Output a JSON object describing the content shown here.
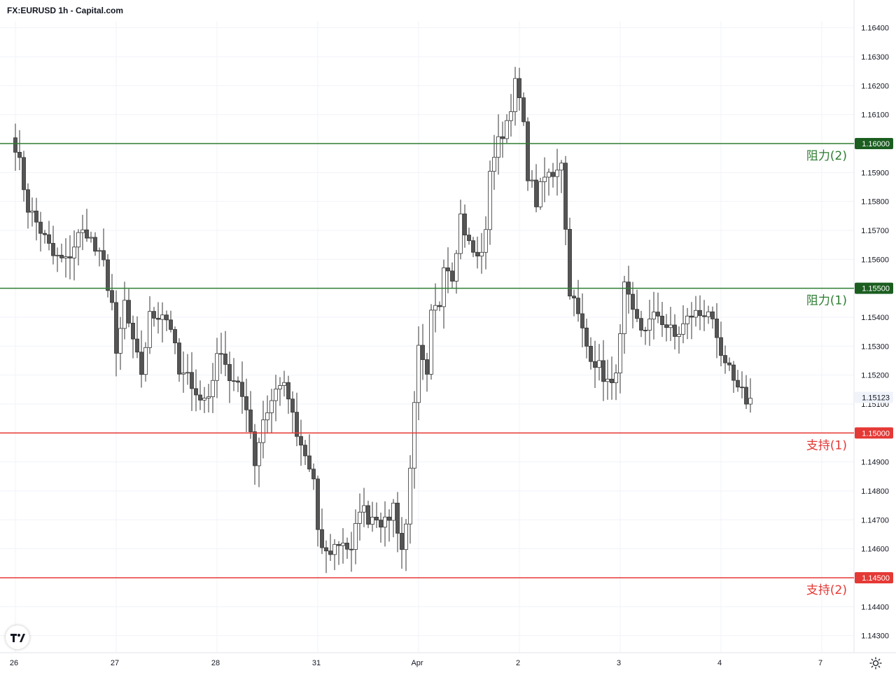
{
  "title": "FX:EURUSD 1h - Capital.com",
  "chart_data": {
    "type": "candlestick",
    "symbol": "FX:EURUSD",
    "interval": "1h",
    "ylim": [
      1.1425,
      1.1645
    ],
    "y_ticks": [
      "1.16400",
      "1.16300",
      "1.16200",
      "1.16100",
      "1.15900",
      "1.15800",
      "1.15700",
      "1.15600",
      "1.15400",
      "1.15300",
      "1.15200",
      "1.15100",
      "1.14900",
      "1.14800",
      "1.14700",
      "1.14600",
      "1.14400",
      "1.14300"
    ],
    "x_ticks": [
      {
        "label": "26",
        "pos": 0
      },
      {
        "label": "27",
        "pos": 24
      },
      {
        "label": "28",
        "pos": 48
      },
      {
        "label": "31",
        "pos": 72
      },
      {
        "label": "Apr",
        "pos": 96
      },
      {
        "label": "2",
        "pos": 120
      },
      {
        "label": "3",
        "pos": 144
      },
      {
        "label": "4",
        "pos": 168
      },
      {
        "label": "7",
        "pos": 192
      }
    ],
    "levels": [
      {
        "name": "阻力(2)",
        "value": 1.16,
        "label": "1.16000",
        "color": "#2e7d32",
        "badge": "#1b5e20"
      },
      {
        "name": "阻力(1)",
        "value": 1.155,
        "label": "1.15500",
        "color": "#2e7d32",
        "badge": "#1b5e20"
      },
      {
        "name": "支持(1)",
        "value": 1.15,
        "label": "1.15000",
        "color": "#e53935",
        "badge": "#e53935"
      },
      {
        "name": "支持(2)",
        "value": 1.145,
        "label": "1.14500",
        "color": "#e53935",
        "badge": "#e53935"
      }
    ],
    "current_price": {
      "value": 1.15123,
      "label": "1.15123"
    },
    "colors": {
      "up": "#ffffff",
      "down": "#555555",
      "wick": "#333333",
      "grid": "#f0f3fa"
    },
    "anchors": [
      [
        0,
        1.16
      ],
      [
        3,
        1.1578
      ],
      [
        6,
        1.157
      ],
      [
        9,
        1.1561
      ],
      [
        12,
        1.1559
      ],
      [
        15,
        1.1568
      ],
      [
        17,
        1.157
      ],
      [
        19,
        1.1563
      ],
      [
        21,
        1.1558
      ],
      [
        23,
        1.1545
      ],
      [
        24,
        1.1525
      ],
      [
        26,
        1.1545
      ],
      [
        28,
        1.153
      ],
      [
        30,
        1.1521
      ],
      [
        32,
        1.154
      ],
      [
        35,
        1.1542
      ],
      [
        37,
        1.1537
      ],
      [
        39,
        1.152
      ],
      [
        42,
        1.1518
      ],
      [
        44,
        1.1511
      ],
      [
        46,
        1.1513
      ],
      [
        47,
        1.152
      ],
      [
        49,
        1.153
      ],
      [
        51,
        1.1519
      ],
      [
        53,
        1.1515
      ],
      [
        55,
        1.151
      ],
      [
        56,
        1.1501
      ],
      [
        57,
        1.149
      ],
      [
        59,
        1.1505
      ],
      [
        61,
        1.1511
      ],
      [
        63,
        1.1518
      ],
      [
        65,
        1.1512
      ],
      [
        67,
        1.1498
      ],
      [
        69,
        1.1492
      ],
      [
        71,
        1.1483
      ],
      [
        72,
        1.1464
      ],
      [
        74,
        1.1458
      ],
      [
        76,
        1.1461
      ],
      [
        78,
        1.1463
      ],
      [
        80,
        1.1458
      ],
      [
        82,
        1.1475
      ],
      [
        84,
        1.1471
      ],
      [
        86,
        1.1472
      ],
      [
        88,
        1.1468
      ],
      [
        90,
        1.1475
      ],
      [
        92,
        1.146
      ],
      [
        93,
        1.1468
      ],
      [
        94,
        1.149
      ],
      [
        95,
        1.1508
      ],
      [
        96,
        1.1528
      ],
      [
        98,
        1.1518
      ],
      [
        99,
        1.154
      ],
      [
        101,
        1.1545
      ],
      [
        102,
        1.156
      ],
      [
        104,
        1.1555
      ],
      [
        106,
        1.1575
      ],
      [
        108,
        1.1565
      ],
      [
        110,
        1.156
      ],
      [
        112,
        1.1568
      ],
      [
        113,
        1.1592
      ],
      [
        115,
        1.16
      ],
      [
        117,
        1.1608
      ],
      [
        119,
        1.162
      ],
      [
        120,
        1.1615
      ],
      [
        121,
        1.1605
      ],
      [
        122,
        1.159
      ],
      [
        124,
        1.158
      ],
      [
        126,
        1.1588
      ],
      [
        128,
        1.159
      ],
      [
        130,
        1.1595
      ],
      [
        131,
        1.157
      ],
      [
        132,
        1.155
      ],
      [
        134,
        1.154
      ],
      [
        136,
        1.153
      ],
      [
        138,
        1.1525
      ],
      [
        140,
        1.152
      ],
      [
        142,
        1.1515
      ],
      [
        144,
        1.1532
      ],
      [
        145,
        1.155
      ],
      [
        147,
        1.154
      ],
      [
        149,
        1.1536
      ],
      [
        151,
        1.1538
      ],
      [
        153,
        1.1541
      ],
      [
        155,
        1.1537
      ],
      [
        157,
        1.1533
      ],
      [
        159,
        1.1537
      ],
      [
        161,
        1.1541
      ],
      [
        163,
        1.1541
      ],
      [
        165,
        1.1543
      ],
      [
        167,
        1.153
      ],
      [
        169,
        1.1522
      ],
      [
        171,
        1.152
      ],
      [
        172,
        1.1515
      ],
      [
        173,
        1.1518
      ],
      [
        174,
        1.151
      ],
      [
        175,
        1.1512
      ]
    ]
  },
  "icons": {
    "logo": "tradingview-logo-icon",
    "settings": "settings-sun-icon"
  }
}
